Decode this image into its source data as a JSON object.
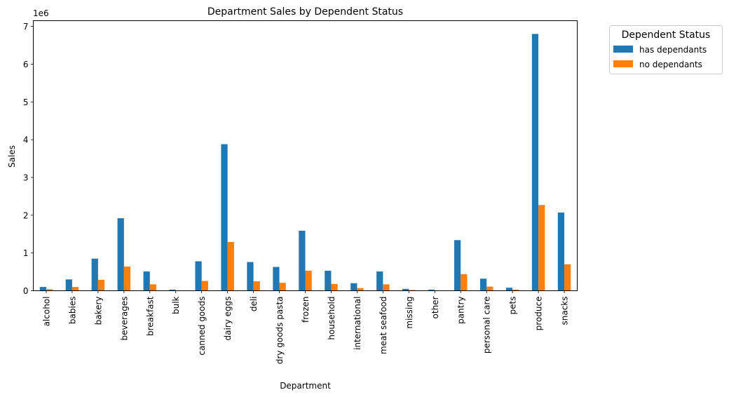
{
  "chart_data": {
    "type": "bar",
    "title": "Department Sales by Dependent Status",
    "xlabel": "Department",
    "ylabel": "Sales",
    "y_scale_label": "1e6",
    "ylim": [
      0,
      7.15
    ],
    "yticks": [
      0,
      1,
      2,
      3,
      4,
      5,
      6,
      7
    ],
    "grid": false,
    "legend_title": "Dependent Status",
    "legend_position": "outside upper right",
    "categories": [
      "alcohol",
      "babies",
      "bakery",
      "beverages",
      "breakfast",
      "bulk",
      "canned goods",
      "dairy eggs",
      "deli",
      "dry goods pasta",
      "frozen",
      "household",
      "international",
      "meat seafood",
      "missing",
      "other",
      "pantry",
      "personal care",
      "pets",
      "produce",
      "snacks"
    ],
    "series": [
      {
        "name": "has dependants",
        "color": "#1f77b4",
        "values": [
          0.1,
          0.3,
          0.85,
          1.92,
          0.51,
          0.03,
          0.78,
          3.88,
          0.76,
          0.63,
          1.59,
          0.53,
          0.2,
          0.51,
          0.05,
          0.03,
          1.34,
          0.32,
          0.08,
          6.8,
          2.07
        ]
      },
      {
        "name": "no dependants",
        "color": "#ff7f0e",
        "values": [
          0.04,
          0.1,
          0.29,
          0.64,
          0.17,
          0.01,
          0.26,
          1.29,
          0.25,
          0.21,
          0.53,
          0.18,
          0.07,
          0.17,
          0.02,
          0.01,
          0.44,
          0.11,
          0.03,
          2.27,
          0.7
        ]
      }
    ]
  }
}
